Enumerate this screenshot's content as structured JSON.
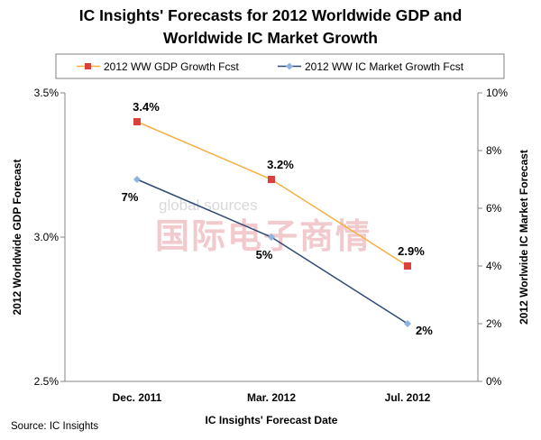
{
  "chart_data": {
    "type": "line",
    "title_lines": [
      "IC Insights' Forecasts for 2012 Worldwide GDP and",
      "Worldwide IC Market Growth"
    ],
    "categories": [
      "Dec. 2011",
      "Mar. 2012",
      "Jul. 2012"
    ],
    "xlabel": "IC Insights' Forecast Date",
    "ylabel_left": "2012 Worldwide GDP Forecast",
    "ylabel_right": "2012 Worlwide IC Market Forecast",
    "y_left": {
      "min": 2.5,
      "max": 3.5,
      "ticks": [
        2.5,
        3.0,
        3.5
      ],
      "tick_labels": [
        "2.5%",
        "3.0%",
        "3.5%"
      ]
    },
    "y_right": {
      "min": 0,
      "max": 10,
      "ticks": [
        0,
        2,
        4,
        6,
        8,
        10
      ],
      "tick_labels": [
        "0%",
        "2%",
        "4%",
        "6%",
        "8%",
        "10%"
      ]
    },
    "series": [
      {
        "name": "2012 WW GDP Growth Fcst",
        "axis": "left",
        "values": [
          3.4,
          3.2,
          2.9
        ],
        "labels": [
          "3.4%",
          "3.2%",
          "2.9%"
        ],
        "line_color": "#f5b041",
        "marker_color": "#d9413b",
        "marker": "square"
      },
      {
        "name": "2012 WW IC Market Growth Fcst",
        "axis": "right",
        "values": [
          7,
          5,
          2
        ],
        "labels": [
          "7%",
          "5%",
          "2%"
        ],
        "line_color": "#2e4a74",
        "marker_color": "#8db3e2",
        "marker": "diamond"
      }
    ],
    "legend_position": "top"
  },
  "source": "Source: IC Insights",
  "watermark": {
    "en": "global sources",
    "cn": "国际电子商情"
  }
}
